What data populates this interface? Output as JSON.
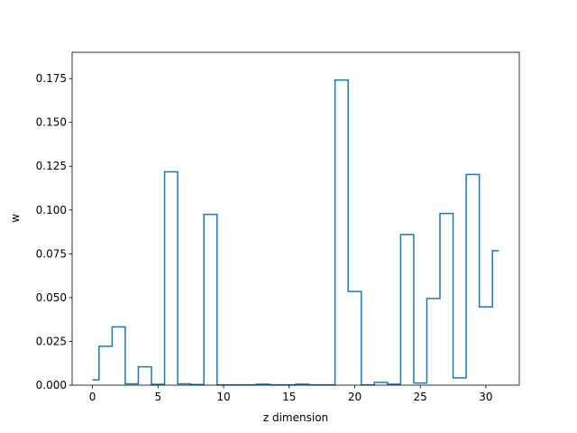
{
  "chart_data": {
    "type": "line",
    "drawstyle": "steps-mid",
    "xlabel": "z dimension",
    "ylabel": "w",
    "xlim": [
      -1.55,
      32.55
    ],
    "ylim": [
      0,
      0.19
    ],
    "xticks": [
      0,
      5,
      10,
      15,
      20,
      25,
      30
    ],
    "xtick_labels": [
      "0",
      "5",
      "10",
      "15",
      "20",
      "25",
      "30"
    ],
    "yticks": [
      0,
      0.025,
      0.05,
      0.075,
      0.1,
      0.125,
      0.15,
      0.175
    ],
    "ytick_labels": [
      "0.000",
      "0.025",
      "0.050",
      "0.075",
      "0.100",
      "0.125",
      "0.150",
      "0.175"
    ],
    "grid": false,
    "series": [
      {
        "color": "#1f77b4",
        "x": [
          0,
          1,
          2,
          3,
          4,
          5,
          6,
          7,
          8,
          9,
          10,
          11,
          12,
          13,
          14,
          15,
          16,
          17,
          18,
          19,
          20,
          21,
          22,
          23,
          24,
          25,
          26,
          27,
          28,
          29,
          30,
          31
        ],
        "y": [
          0.003,
          0.0222,
          0.0333,
          0.0008,
          0.0105,
          0.0005,
          0.1218,
          0.0008,
          0.0004,
          0.0975,
          0.0002,
          0.0002,
          0.0002,
          0.0006,
          0.0002,
          0.0002,
          0.0006,
          0.0002,
          0.0002,
          0.1742,
          0.0535,
          0.0002,
          0.0016,
          0.0006,
          0.086,
          0.0012,
          0.0495,
          0.098,
          0.0042,
          0.1203,
          0.0447,
          0.0768
        ]
      }
    ]
  }
}
